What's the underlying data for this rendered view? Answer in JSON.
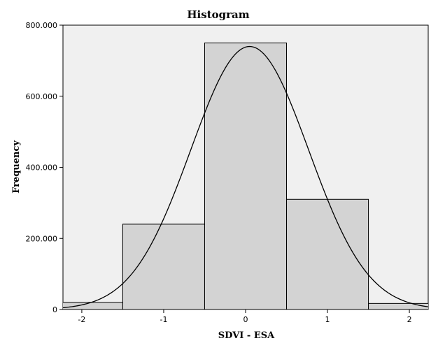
{
  "chart_data": {
    "type": "bar",
    "title": "Histogram",
    "xlabel": "SDVI - ESA",
    "ylabel": "Frequency",
    "bins": [
      {
        "x0": -2.5,
        "x1": -1.5,
        "value": 20
      },
      {
        "x0": -1.5,
        "x1": -0.5,
        "value": 240
      },
      {
        "x0": -0.5,
        "x1": 0.5,
        "value": 750
      },
      {
        "x0": 0.5,
        "x1": 1.5,
        "value": 310
      },
      {
        "x0": 1.5,
        "x1": 2.5,
        "value": 17
      }
    ],
    "normal_curve": {
      "mean": 0.05,
      "peak": 740,
      "sd": 0.72
    },
    "xlim": [
      -2.23,
      2.23
    ],
    "ylim": [
      0,
      800
    ],
    "x_ticks": [
      {
        "value": -2,
        "label": "-2"
      },
      {
        "value": -1,
        "label": "-1"
      },
      {
        "value": 0,
        "label": "0"
      },
      {
        "value": 1,
        "label": "1"
      },
      {
        "value": 2,
        "label": "2"
      }
    ],
    "y_ticks": [
      {
        "value": 0,
        "label": "0"
      },
      {
        "value": 200,
        "label": "200.000"
      },
      {
        "value": 400,
        "label": "400.000"
      },
      {
        "value": 600,
        "label": "600.000"
      },
      {
        "value": 800,
        "label": "800.000"
      }
    ],
    "grid": false,
    "colors": {
      "plot_background": "#f0f0f0",
      "bar_fill": "#d3d3d3",
      "bar_stroke": "#000000",
      "curve": "#000000"
    }
  }
}
